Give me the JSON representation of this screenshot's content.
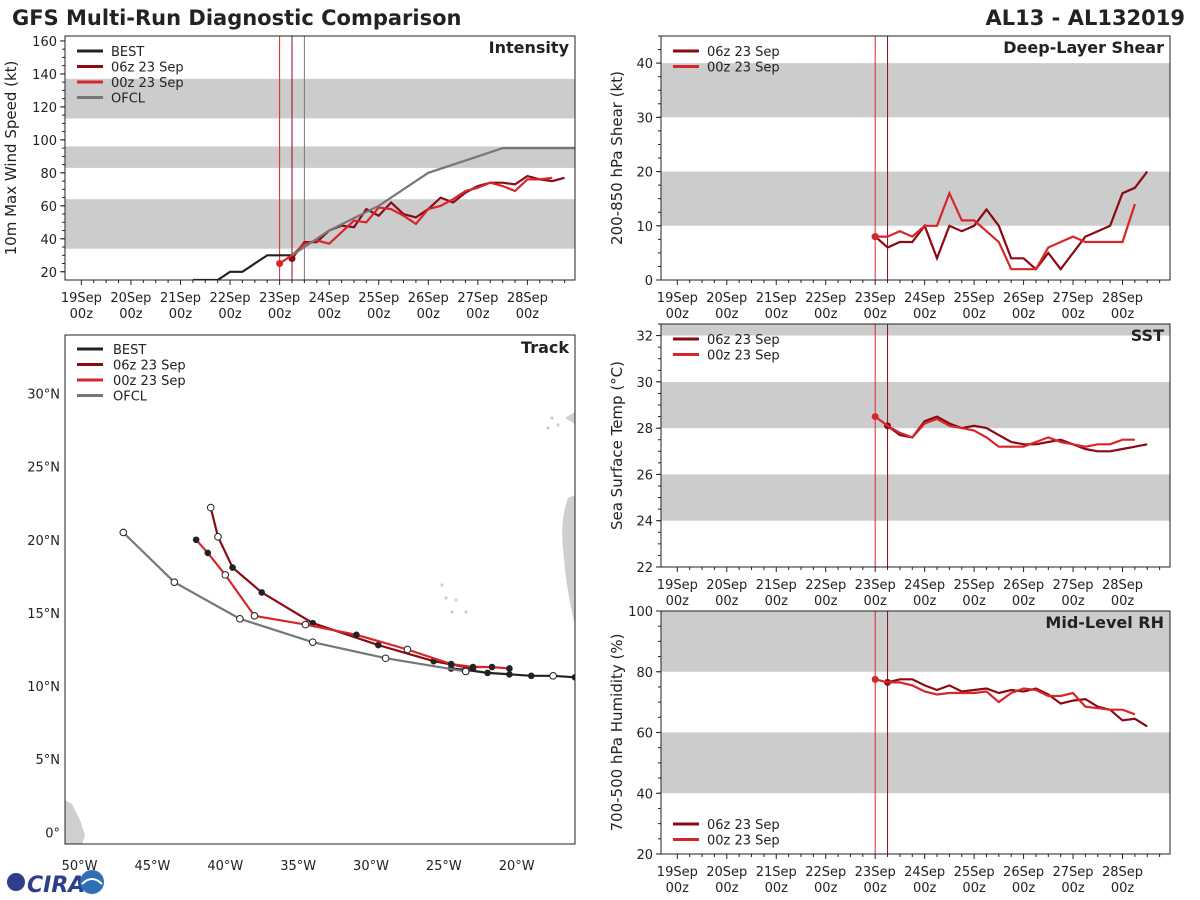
{
  "header": {
    "title": "GFS Multi-Run Diagnostic Comparison",
    "storm_id": "AL13 - AL132019"
  },
  "logo_text": "CIRA",
  "colors": {
    "best": "#222222",
    "run06": "#8b0a14",
    "run00": "#d7262b",
    "ofcl": "#777777",
    "band": "#cccccc",
    "land": "#cfcfcf"
  },
  "time_axis": {
    "xlim": [
      18.67,
      28.96
    ],
    "ticks": [
      19,
      20,
      21,
      22,
      23,
      24,
      25,
      26,
      27,
      28
    ],
    "labels_day": [
      "19Sep",
      "20Sep",
      "21Sep",
      "22Sep",
      "23Sep",
      "24Sep",
      "25Sep",
      "26Sep",
      "27Sep",
      "28Sep"
    ],
    "labels_hour": [
      "00z",
      "00z",
      "00z",
      "00z",
      "00z",
      "00z",
      "00z",
      "00z",
      "00z",
      "00z"
    ]
  },
  "chart_data": [
    {
      "id": "intensity",
      "type": "line",
      "title": "Intensity",
      "ylabel": "10m Max Wind Speed (kt)",
      "ylim": [
        15,
        163
      ],
      "yticks": [
        20,
        40,
        60,
        80,
        100,
        120,
        140,
        160
      ],
      "bands": [
        [
          34,
          64
        ],
        [
          83,
          96
        ],
        [
          113,
          137
        ]
      ],
      "vlines": [
        {
          "x": 23.0,
          "color": "run00"
        },
        {
          "x": 23.25,
          "color": "run06"
        },
        {
          "x": 23.5,
          "color": "ofcl"
        }
      ],
      "legend": [
        "BEST",
        "06z 23 Sep",
        "00z 23 Sep",
        "OFCL"
      ],
      "series": [
        {
          "name": "BEST",
          "color": "best",
          "x": [
            21.25,
            21.5,
            21.75,
            22.0,
            22.25,
            22.5,
            22.75,
            23.0,
            23.25
          ],
          "y": [
            15,
            15,
            15,
            20,
            20,
            25,
            30,
            30,
            30
          ],
          "markers": false
        },
        {
          "name": "06z 23 Sep",
          "color": "run06",
          "x": [
            23.25,
            23.5,
            23.75,
            24.0,
            24.25,
            24.5,
            24.75,
            25.0,
            25.25,
            25.5,
            25.75,
            26.0,
            26.25,
            26.5,
            26.75,
            27.0,
            27.25,
            27.5,
            27.75,
            28.0,
            28.25,
            28.5,
            28.75
          ],
          "y": [
            28,
            38,
            38,
            45,
            48,
            47,
            58,
            54,
            62,
            55,
            53,
            58,
            65,
            62,
            68,
            72,
            74,
            74,
            73,
            78,
            76,
            75,
            77
          ],
          "markers": false,
          "start_marker": true
        },
        {
          "name": "00z 23 Sep",
          "color": "run00",
          "x": [
            23.0,
            23.25,
            23.5,
            23.75,
            24.0,
            24.25,
            24.5,
            24.75,
            25.0,
            25.25,
            25.5,
            25.75,
            26.0,
            26.25,
            26.5,
            26.75,
            27.0,
            27.25,
            27.5,
            27.75,
            28.0,
            28.25,
            28.5
          ],
          "y": [
            25,
            30,
            37,
            39,
            37,
            44,
            51,
            50,
            59,
            58,
            54,
            49,
            58,
            60,
            64,
            69,
            71,
            74,
            72,
            69,
            76,
            76,
            77
          ],
          "markers": false,
          "start_marker": true
        },
        {
          "name": "OFCL",
          "color": "ofcl",
          "x": [
            23.25,
            23.5,
            24.0,
            25.0,
            26.0,
            27.0,
            27.5,
            28.0,
            28.5,
            28.96
          ],
          "y": [
            30,
            35,
            45,
            60,
            80,
            90,
            95,
            95,
            95,
            95
          ],
          "markers": false
        }
      ]
    },
    {
      "id": "shear",
      "type": "line",
      "title": "Deep-Layer Shear",
      "ylabel": "200-850 hPa Shear (kt)",
      "ylim": [
        0,
        45
      ],
      "yticks": [
        0,
        10,
        20,
        30,
        40
      ],
      "bands": [
        [
          10,
          20
        ],
        [
          30,
          40
        ]
      ],
      "vlines": [
        {
          "x": 23.0,
          "color": "run00"
        },
        {
          "x": 23.25,
          "color": "run06"
        }
      ],
      "legend": [
        "06z 23 Sep",
        "00z 23 Sep"
      ],
      "series": [
        {
          "name": "06z 23 Sep",
          "color": "run06",
          "x": [
            23.0,
            23.25,
            23.5,
            23.75,
            24.0,
            24.25,
            24.5,
            24.75,
            25.0,
            25.25,
            25.5,
            25.75,
            26.0,
            26.25,
            26.5,
            26.75,
            27.0,
            27.25,
            27.5,
            27.75,
            28.0,
            28.25,
            28.5
          ],
          "y": [
            8,
            6,
            7,
            7,
            10,
            4,
            10,
            9,
            10,
            13,
            10,
            4,
            4,
            2,
            5,
            2,
            5,
            8,
            9,
            10,
            16,
            17,
            20
          ],
          "markers": false,
          "start_marker": true
        },
        {
          "name": "00z 23 Sep",
          "color": "run00",
          "x": [
            23.0,
            23.25,
            23.5,
            23.75,
            24.0,
            24.25,
            24.5,
            24.75,
            25.0,
            25.25,
            25.5,
            25.75,
            26.0,
            26.25,
            26.5,
            26.75,
            27.0,
            27.25,
            27.5,
            27.75,
            28.0,
            28.25
          ],
          "y": [
            8,
            8,
            9,
            8,
            10,
            10,
            16,
            11,
            11,
            9,
            7,
            2,
            2,
            2,
            6,
            7,
            8,
            7,
            7,
            7,
            7,
            14
          ],
          "markers": false,
          "start_marker": true
        }
      ]
    },
    {
      "id": "sst",
      "type": "line",
      "title": "SST",
      "ylabel": "Sea Surface Temp (°C)",
      "ylim": [
        22,
        32.5
      ],
      "yticks": [
        22,
        24,
        26,
        28,
        30,
        32
      ],
      "bands": [
        [
          24,
          26
        ],
        [
          28,
          30
        ],
        [
          32,
          32.5
        ]
      ],
      "vlines": [
        {
          "x": 23.0,
          "color": "run00"
        },
        {
          "x": 23.25,
          "color": "run06"
        }
      ],
      "legend": [
        "06z 23 Sep",
        "00z 23 Sep"
      ],
      "series": [
        {
          "name": "06z 23 Sep",
          "color": "run06",
          "x": [
            23.25,
            23.5,
            23.75,
            24.0,
            24.25,
            24.5,
            24.75,
            25.0,
            25.25,
            25.5,
            25.75,
            26.0,
            26.25,
            26.5,
            26.75,
            27.0,
            27.25,
            27.5,
            27.75,
            28.0,
            28.25,
            28.5
          ],
          "y": [
            28.1,
            27.7,
            27.6,
            28.3,
            28.5,
            28.2,
            28.0,
            28.1,
            28.0,
            27.7,
            27.4,
            27.3,
            27.3,
            27.4,
            27.5,
            27.3,
            27.1,
            27.0,
            27.0,
            27.1,
            27.2,
            27.3
          ],
          "markers": false,
          "start_marker": true
        },
        {
          "name": "00z 23 Sep",
          "color": "run00",
          "x": [
            23.0,
            23.25,
            23.5,
            23.75,
            24.0,
            24.25,
            24.5,
            24.75,
            25.0,
            25.25,
            25.5,
            25.75,
            26.0,
            26.25,
            26.5,
            26.75,
            27.0,
            27.25,
            27.5,
            27.75,
            28.0,
            28.25
          ],
          "y": [
            28.5,
            28.1,
            27.8,
            27.6,
            28.2,
            28.4,
            28.1,
            28.0,
            27.9,
            27.6,
            27.2,
            27.2,
            27.2,
            27.4,
            27.6,
            27.4,
            27.3,
            27.2,
            27.3,
            27.3,
            27.5,
            27.5
          ],
          "markers": false,
          "start_marker": true
        }
      ]
    },
    {
      "id": "rh",
      "type": "line",
      "title": "Mid-Level RH",
      "ylabel": "700-500 hPa Humidity (%)",
      "ylim": [
        20,
        100
      ],
      "yticks": [
        20,
        40,
        60,
        80,
        100
      ],
      "bands": [
        [
          40,
          60
        ],
        [
          80,
          100
        ]
      ],
      "vlines": [
        {
          "x": 23.0,
          "color": "run00"
        },
        {
          "x": 23.25,
          "color": "run06"
        }
      ],
      "legend": [
        "06z 23 Sep",
        "00z 23 Sep"
      ],
      "series": [
        {
          "name": "06z 23 Sep",
          "color": "run06",
          "x": [
            23.25,
            23.5,
            23.75,
            24.0,
            24.25,
            24.5,
            24.75,
            25.0,
            25.25,
            25.5,
            25.75,
            26.0,
            26.25,
            26.5,
            26.75,
            27.0,
            27.25,
            27.5,
            27.75,
            28.0,
            28.25,
            28.5
          ],
          "y": [
            76.5,
            77.5,
            77.5,
            75.5,
            74,
            75.5,
            73.5,
            74,
            74.5,
            73,
            74,
            73.5,
            74.5,
            72.5,
            69.5,
            70.5,
            71,
            68.5,
            67.5,
            64,
            64.5,
            62
          ],
          "markers": false,
          "start_marker": true
        },
        {
          "name": "00z 23 Sep",
          "color": "run00",
          "x": [
            23.0,
            23.25,
            23.5,
            23.75,
            24.0,
            24.25,
            24.5,
            24.75,
            25.0,
            25.25,
            25.5,
            25.75,
            26.0,
            26.25,
            26.5,
            26.75,
            27.0,
            27.25,
            27.5,
            27.75,
            28.0,
            28.25
          ],
          "y": [
            77.5,
            76.5,
            76.5,
            75.5,
            73.5,
            72.5,
            73,
            73,
            73,
            73.5,
            70,
            73,
            74.5,
            74,
            72,
            72,
            73,
            68.5,
            68,
            67.5,
            67.5,
            66
          ]
        },
        {
          "name": "00z start",
          "color": "run00",
          "x": [
            23.0
          ],
          "y": [
            77.5
          ],
          "markers": true
        }
      ]
    },
    {
      "id": "track",
      "type": "scatter",
      "title": "Track",
      "xlim": [
        -51,
        -16
      ],
      "ylim": [
        -0.8,
        34
      ],
      "xticks": [
        -50,
        -45,
        -40,
        -35,
        -30,
        -25,
        -20
      ],
      "xtick_labels": [
        "50°W",
        "45°W",
        "40°W",
        "35°W",
        "30°W",
        "25°W",
        "20°W"
      ],
      "yticks": [
        0,
        5,
        10,
        15,
        20,
        25,
        30
      ],
      "ytick_labels": [
        "0°",
        "5°N",
        "10°N",
        "15°N",
        "20°N",
        "25°N",
        "30°N"
      ],
      "legend": [
        "BEST",
        "06z 23 Sep",
        "00z 23 Sep",
        "OFCL"
      ],
      "series": [
        {
          "name": "BEST",
          "color": "best",
          "lon": [
            -16,
            -17.5,
            -19,
            -20.5,
            -22,
            -23.5,
            -24.5
          ],
          "lat": [
            10.6,
            10.7,
            10.7,
            10.8,
            10.9,
            11.1,
            11.2
          ],
          "open_marker_index": [
            1
          ]
        },
        {
          "name": "06z 23 Sep",
          "color": "run06",
          "lon": [
            -23.0,
            -25.7,
            -29.5,
            -34.0,
            -37.5,
            -39.5,
            -40.5,
            -41.0
          ],
          "lat": [
            11.2,
            11.7,
            12.8,
            14.3,
            16.4,
            18.1,
            20.2,
            22.2
          ],
          "open_marker_index": [
            6,
            7
          ],
          "filled": [
            -23.0,
            -25.7,
            -29.5,
            -34.0,
            -37.5,
            -39.5,
            -40.5
          ]
        },
        {
          "name": "00z 23 Sep",
          "color": "run00",
          "lon": [
            -20.5,
            -21.7,
            -23.0,
            -24.5,
            -27.5,
            -31.0,
            -34.5,
            -38.0,
            -40.0,
            -41.2,
            -42.0
          ],
          "lat": [
            11.2,
            11.3,
            11.3,
            11.5,
            12.5,
            13.5,
            14.2,
            14.8,
            17.6,
            19.1,
            20.0
          ],
          "open_marker_index": [
            4,
            6,
            7,
            8
          ]
        },
        {
          "name": "OFCL",
          "color": "ofcl",
          "lon": [
            -23.5,
            -29.0,
            -34.0,
            -39.0,
            -43.5,
            -47.0
          ],
          "lat": [
            11.0,
            11.9,
            13.0,
            14.6,
            17.1,
            20.5
          ],
          "open_marker_index": [
            0,
            1,
            2,
            3,
            4,
            5
          ]
        }
      ]
    }
  ]
}
